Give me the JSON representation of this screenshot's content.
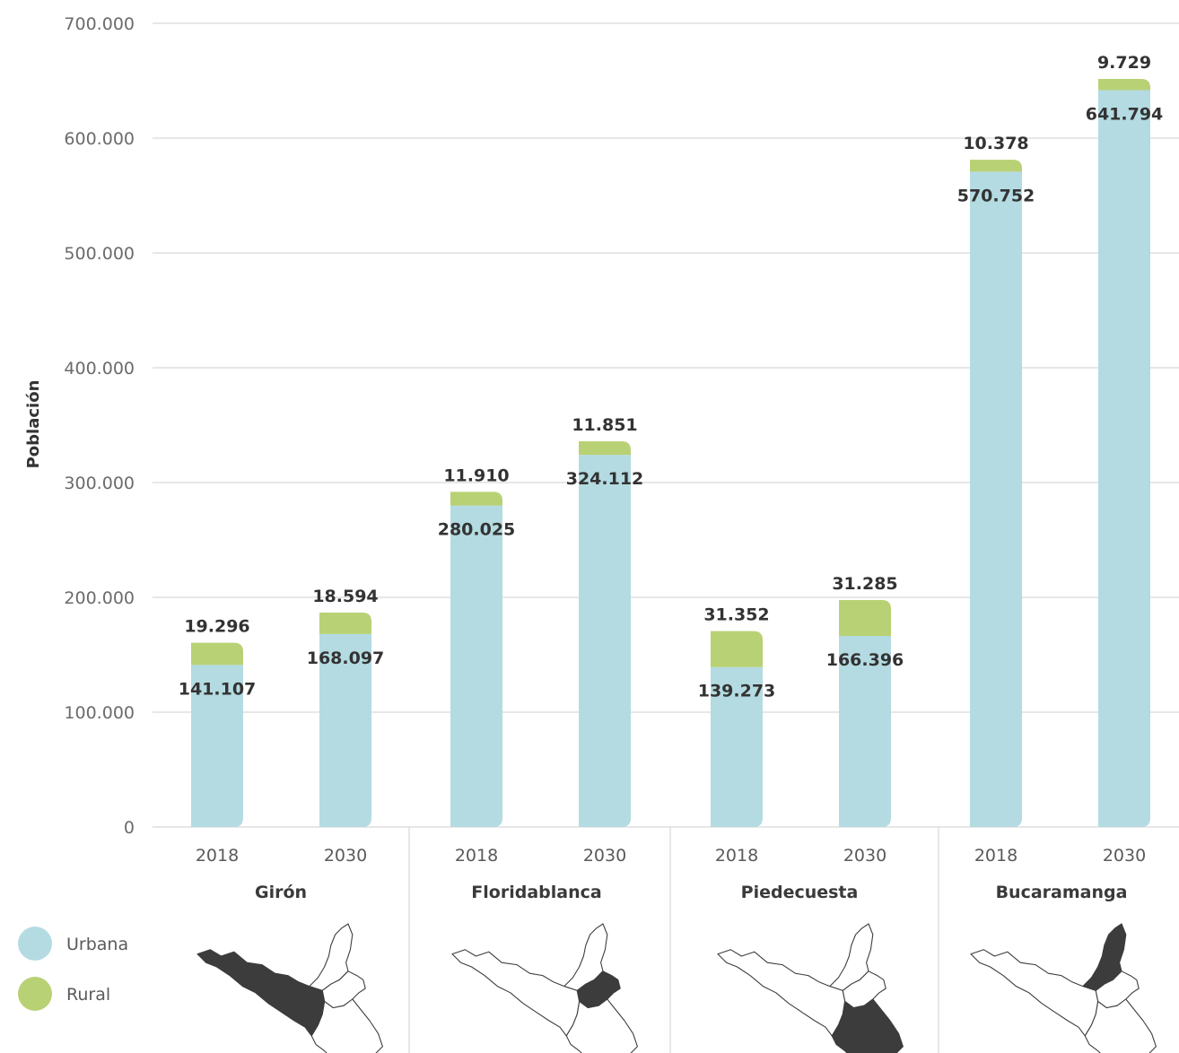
{
  "chart_data": {
    "type": "bar",
    "stacked": true,
    "ylabel": "Población",
    "ylim": [
      0,
      700000
    ],
    "y_ticks": [
      0,
      100000,
      200000,
      300000,
      400000,
      500000,
      600000,
      700000
    ],
    "y_tick_labels": [
      "0",
      "100.000",
      "200.000",
      "300.000",
      "400.000",
      "500.000",
      "600.000",
      "700.000"
    ],
    "grid": true,
    "legend_position": "bottom-left",
    "colors": {
      "Urbana": "#b4dbe2",
      "Rural": "#b8d175",
      "map_fill": "#3c3c3c"
    },
    "groups": [
      {
        "name": "Girón",
        "map_icon": "giron-map-icon",
        "bars": [
          {
            "year": "2018",
            "urbana": 141107,
            "rural": 19296,
            "urbana_label": "141.107",
            "rural_label": "19.296"
          },
          {
            "year": "2030",
            "urbana": 168097,
            "rural": 18594,
            "urbana_label": "168.097",
            "rural_label": "18.594"
          }
        ]
      },
      {
        "name": "Floridablanca",
        "map_icon": "floridablanca-map-icon",
        "bars": [
          {
            "year": "2018",
            "urbana": 280025,
            "rural": 11910,
            "urbana_label": "280.025",
            "rural_label": "11.910"
          },
          {
            "year": "2030",
            "urbana": 324112,
            "rural": 11851,
            "urbana_label": "324.112",
            "rural_label": "11.851"
          }
        ]
      },
      {
        "name": "Piedecuesta",
        "map_icon": "piedecuesta-map-icon",
        "bars": [
          {
            "year": "2018",
            "urbana": 139273,
            "rural": 31352,
            "urbana_label": "139.273",
            "rural_label": "31.352"
          },
          {
            "year": "2030",
            "urbana": 166396,
            "rural": 31285,
            "urbana_label": "166.396",
            "rural_label": "31.285"
          }
        ]
      },
      {
        "name": "Bucaramanga",
        "map_icon": "bucaramanga-map-icon",
        "bars": [
          {
            "year": "2018",
            "urbana": 570752,
            "rural": 10378,
            "urbana_label": "570.752",
            "rural_label": "10.378"
          },
          {
            "year": "2030",
            "urbana": 641794,
            "rural": 9729,
            "urbana_label": "641.794",
            "rural_label": "9.729"
          }
        ]
      }
    ],
    "legend": [
      {
        "name": "Urbana",
        "key": "urbana"
      },
      {
        "name": "Rural",
        "key": "rural"
      }
    ]
  }
}
